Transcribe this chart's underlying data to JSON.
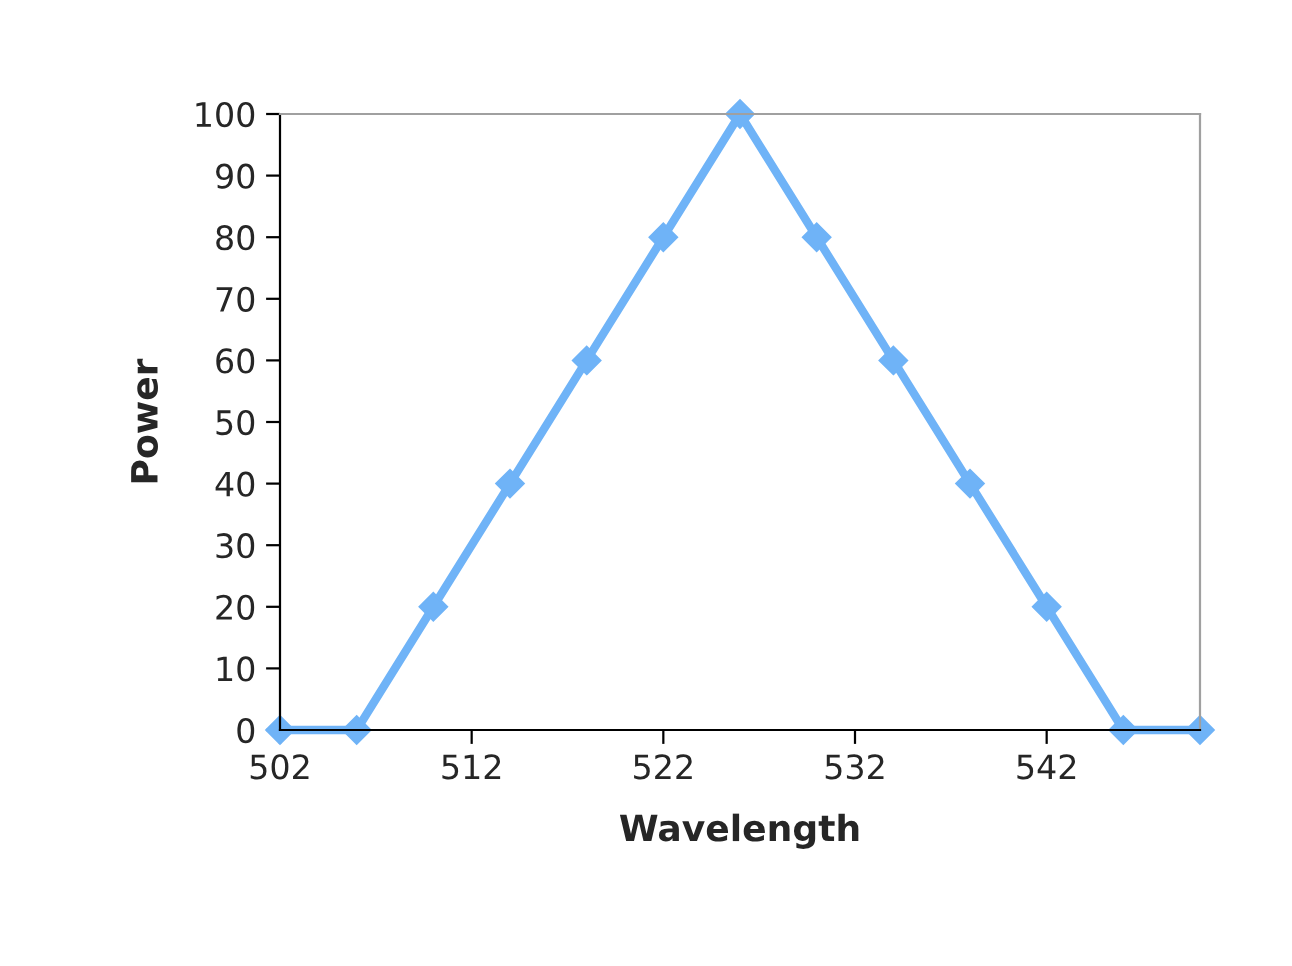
{
  "chart_data": {
    "type": "line",
    "xlabel": "Wavelength",
    "ylabel": "Power",
    "x": [
      502,
      506,
      510,
      514,
      518,
      522,
      526,
      530,
      534,
      538,
      542,
      546,
      550
    ],
    "series": [
      {
        "color": "#6fb3f7",
        "values": [
          0,
          0,
          20,
          40,
          60,
          80,
          100,
          80,
          60,
          40,
          20,
          0,
          0
        ]
      }
    ],
    "xlim": [
      502,
      550
    ],
    "xticks": [
      502,
      512,
      522,
      532,
      542
    ],
    "ylim": [
      0,
      100
    ],
    "yticks": [
      0,
      10,
      20,
      30,
      40,
      50,
      60,
      70,
      80,
      90,
      100
    ],
    "marker": "diamond",
    "line_style": "solid"
  }
}
